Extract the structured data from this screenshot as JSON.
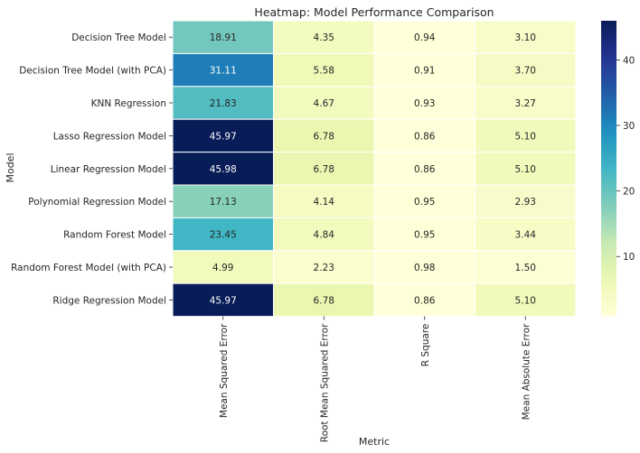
{
  "chart_data": {
    "type": "heatmap",
    "title": "Heatmap: Model Performance Comparison",
    "xlabel": "Metric",
    "ylabel": "Model",
    "columns": [
      "Mean Squared Error",
      "Root Mean Squared Error",
      "R Square",
      "Mean Absolute Error"
    ],
    "rows": [
      "Decision Tree Model",
      "Decision Tree Model (with PCA)",
      "KNN Regression",
      "Lasso Regression Model",
      "Linear Regression Model",
      "Polynomial Regression Model",
      "Random Forest Model",
      "Random Forest Model (with PCA)",
      "Ridge Regression Model"
    ],
    "values": [
      [
        18.91,
        4.35,
        0.94,
        3.1
      ],
      [
        31.11,
        5.58,
        0.91,
        3.7
      ],
      [
        21.83,
        4.67,
        0.93,
        3.27
      ],
      [
        45.97,
        6.78,
        0.86,
        5.1
      ],
      [
        45.98,
        6.78,
        0.86,
        5.1
      ],
      [
        17.13,
        4.14,
        0.95,
        2.93
      ],
      [
        23.45,
        4.84,
        0.95,
        3.44
      ],
      [
        4.99,
        2.23,
        0.98,
        1.5
      ],
      [
        45.97,
        6.78,
        0.86,
        5.1
      ]
    ],
    "value_format": "0.00",
    "colormap": "YlGnBu",
    "colorbar": {
      "range": [
        0.86,
        45.98
      ],
      "ticks": [
        10,
        20,
        30,
        40
      ]
    },
    "grid": false
  }
}
